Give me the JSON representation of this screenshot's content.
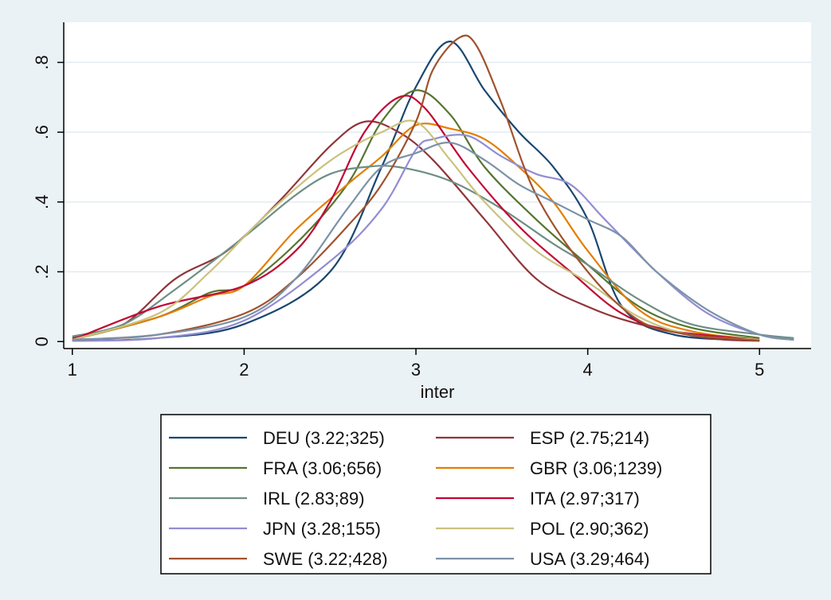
{
  "chart_data": {
    "type": "line",
    "xlabel": "inter",
    "ylabel": "",
    "xlim": [
      0.95,
      5.3
    ],
    "ylim": [
      -0.02,
      0.915
    ],
    "x_ticks": [
      "1",
      "2",
      "3",
      "4",
      "5"
    ],
    "y_ticks": [
      "0",
      ".2",
      ".4",
      ".6",
      ".8"
    ],
    "grid": "horizontal",
    "legend_position": "bottom",
    "series": [
      {
        "name": "DEU (3.22;325)",
        "color": "#1a476f",
        "points": [
          [
            1,
            0.002
          ],
          [
            1.5,
            0.01
          ],
          [
            2,
            0.05
          ],
          [
            2.5,
            0.2
          ],
          [
            2.8,
            0.5
          ],
          [
            3,
            0.73
          ],
          [
            3.2,
            0.86
          ],
          [
            3.4,
            0.72
          ],
          [
            3.6,
            0.6
          ],
          [
            3.8,
            0.5
          ],
          [
            4,
            0.35
          ],
          [
            4.2,
            0.1
          ],
          [
            4.5,
            0.02
          ],
          [
            5,
            0.003
          ]
        ]
      },
      {
        "name": "ESP (2.75;214)",
        "color": "#90353b",
        "points": [
          [
            1,
            0.01
          ],
          [
            1.3,
            0.05
          ],
          [
            1.6,
            0.18
          ],
          [
            1.9,
            0.26
          ],
          [
            2.2,
            0.4
          ],
          [
            2.5,
            0.56
          ],
          [
            2.7,
            0.63
          ],
          [
            2.9,
            0.6
          ],
          [
            3.1,
            0.52
          ],
          [
            3.4,
            0.35
          ],
          [
            3.7,
            0.18
          ],
          [
            4,
            0.1
          ],
          [
            4.3,
            0.05
          ],
          [
            4.7,
            0.01
          ],
          [
            5,
            0.002
          ]
        ]
      },
      {
        "name": "FRA (3.06;656)",
        "color": "#55752f",
        "points": [
          [
            1,
            0.005
          ],
          [
            1.5,
            0.07
          ],
          [
            1.8,
            0.14
          ],
          [
            2,
            0.16
          ],
          [
            2.3,
            0.28
          ],
          [
            2.6,
            0.45
          ],
          [
            2.8,
            0.63
          ],
          [
            3,
            0.72
          ],
          [
            3.2,
            0.65
          ],
          [
            3.4,
            0.5
          ],
          [
            3.7,
            0.35
          ],
          [
            4,
            0.22
          ],
          [
            4.3,
            0.1
          ],
          [
            4.6,
            0.04
          ],
          [
            5,
            0.01
          ]
        ]
      },
      {
        "name": "GBR (3.06;1239)",
        "color": "#e37e00",
        "points": [
          [
            1,
            0.005
          ],
          [
            1.5,
            0.07
          ],
          [
            1.8,
            0.13
          ],
          [
            2,
            0.16
          ],
          [
            2.3,
            0.32
          ],
          [
            2.6,
            0.45
          ],
          [
            2.8,
            0.53
          ],
          [
            3,
            0.62
          ],
          [
            3.2,
            0.61
          ],
          [
            3.4,
            0.58
          ],
          [
            3.6,
            0.5
          ],
          [
            3.8,
            0.4
          ],
          [
            4,
            0.26
          ],
          [
            4.3,
            0.09
          ],
          [
            4.6,
            0.03
          ],
          [
            5,
            0.005
          ]
        ]
      },
      {
        "name": "IRL (2.83;89)",
        "color": "#6e8e84",
        "points": [
          [
            1,
            0.015
          ],
          [
            1.3,
            0.05
          ],
          [
            1.6,
            0.15
          ],
          [
            2,
            0.3
          ],
          [
            2.3,
            0.42
          ],
          [
            2.5,
            0.48
          ],
          [
            2.7,
            0.5
          ],
          [
            2.9,
            0.5
          ],
          [
            3.2,
            0.46
          ],
          [
            3.5,
            0.38
          ],
          [
            3.8,
            0.28
          ],
          [
            4,
            0.22
          ],
          [
            4.3,
            0.12
          ],
          [
            4.6,
            0.05
          ],
          [
            5,
            0.02
          ],
          [
            5.2,
            0.01
          ]
        ]
      },
      {
        "name": "ITA (2.97;317)",
        "color": "#c10534",
        "points": [
          [
            1,
            0.005
          ],
          [
            1.5,
            0.1
          ],
          [
            2,
            0.16
          ],
          [
            2.3,
            0.26
          ],
          [
            2.5,
            0.4
          ],
          [
            2.7,
            0.6
          ],
          [
            2.9,
            0.7
          ],
          [
            3.05,
            0.67
          ],
          [
            3.3,
            0.5
          ],
          [
            3.6,
            0.33
          ],
          [
            3.9,
            0.2
          ],
          [
            4.2,
            0.08
          ],
          [
            4.5,
            0.03
          ],
          [
            5,
            0.005
          ]
        ]
      },
      {
        "name": "JPN (3.28;155)",
        "color": "#938dd2",
        "points": [
          [
            1,
            0.002
          ],
          [
            1.5,
            0.01
          ],
          [
            2,
            0.06
          ],
          [
            2.5,
            0.23
          ],
          [
            2.8,
            0.38
          ],
          [
            3,
            0.55
          ],
          [
            3.1,
            0.58
          ],
          [
            3.3,
            0.59
          ],
          [
            3.5,
            0.53
          ],
          [
            3.7,
            0.48
          ],
          [
            3.9,
            0.45
          ],
          [
            4.1,
            0.35
          ],
          [
            4.4,
            0.2
          ],
          [
            4.7,
            0.08
          ],
          [
            5,
            0.02
          ],
          [
            5.2,
            0.005
          ]
        ]
      },
      {
        "name": "POL (2.90;362)",
        "color": "#cac27e",
        "points": [
          [
            1,
            0.005
          ],
          [
            1.5,
            0.08
          ],
          [
            1.8,
            0.2
          ],
          [
            2.1,
            0.35
          ],
          [
            2.4,
            0.48
          ],
          [
            2.6,
            0.55
          ],
          [
            2.8,
            0.6
          ],
          [
            3,
            0.63
          ],
          [
            3.2,
            0.52
          ],
          [
            3.4,
            0.4
          ],
          [
            3.7,
            0.26
          ],
          [
            4,
            0.17
          ],
          [
            4.3,
            0.07
          ],
          [
            4.6,
            0.02
          ],
          [
            5,
            0.005
          ]
        ]
      },
      {
        "name": "SWE (3.22;428)",
        "color": "#a0522d",
        "points": [
          [
            1,
            0.005
          ],
          [
            1.5,
            0.02
          ],
          [
            2,
            0.08
          ],
          [
            2.3,
            0.18
          ],
          [
            2.6,
            0.33
          ],
          [
            2.8,
            0.45
          ],
          [
            3,
            0.63
          ],
          [
            3.1,
            0.78
          ],
          [
            3.25,
            0.87
          ],
          [
            3.35,
            0.85
          ],
          [
            3.5,
            0.68
          ],
          [
            3.7,
            0.42
          ],
          [
            4,
            0.2
          ],
          [
            4.3,
            0.06
          ],
          [
            4.6,
            0.02
          ],
          [
            5,
            0.003
          ]
        ]
      },
      {
        "name": "USA (3.29;464)",
        "color": "#7b92a8",
        "points": [
          [
            1,
            0.005
          ],
          [
            1.5,
            0.02
          ],
          [
            2,
            0.07
          ],
          [
            2.3,
            0.18
          ],
          [
            2.6,
            0.38
          ],
          [
            2.8,
            0.5
          ],
          [
            3,
            0.54
          ],
          [
            3.2,
            0.57
          ],
          [
            3.4,
            0.52
          ],
          [
            3.6,
            0.45
          ],
          [
            3.8,
            0.4
          ],
          [
            4,
            0.35
          ],
          [
            4.2,
            0.3
          ],
          [
            4.4,
            0.2
          ],
          [
            4.7,
            0.09
          ],
          [
            5,
            0.02
          ],
          [
            5.2,
            0.005
          ]
        ]
      }
    ]
  }
}
